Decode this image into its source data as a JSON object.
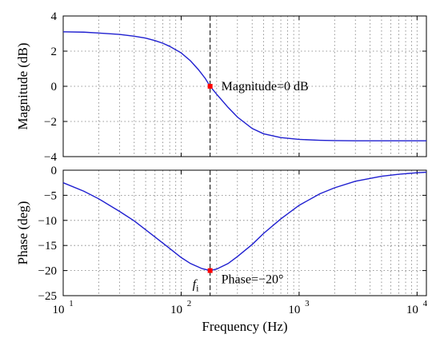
{
  "chart_data": [
    {
      "type": "line",
      "x_scale": "log",
      "xlim": [
        10,
        12000
      ],
      "ylim": [
        -4,
        4
      ],
      "ylabel": "Magnitude (dB)",
      "x_ticks_labeled": false,
      "y_ticks": [
        4,
        2,
        0,
        -2,
        -4
      ],
      "y_tick_labels": [
        "4",
        "2",
        "0",
        "−2",
        "−4"
      ],
      "grid": true,
      "color": "#1f1fd0",
      "series": [
        {
          "x": [
            10,
            15,
            20,
            30,
            40,
            50,
            60,
            70,
            80,
            100,
            120,
            140,
            160,
            176,
            200,
            250,
            300,
            400,
            500,
            700,
            1000,
            1500,
            2000,
            3000,
            5000,
            7000,
            12000
          ],
          "y": [
            3.1,
            3.08,
            3.03,
            2.95,
            2.85,
            2.74,
            2.6,
            2.45,
            2.27,
            1.9,
            1.45,
            0.95,
            0.45,
            0.0,
            -0.45,
            -1.2,
            -1.75,
            -2.4,
            -2.7,
            -2.92,
            -3.02,
            -3.07,
            -3.09,
            -3.1,
            -3.1,
            -3.1,
            -3.1
          ]
        }
      ],
      "marker": {
        "x": 176,
        "y": 0
      },
      "annotation": "Magnitude=0 dB"
    },
    {
      "type": "line",
      "x_scale": "log",
      "xlim": [
        10,
        12000
      ],
      "ylim": [
        -25,
        0
      ],
      "xlabel": "Frequency  (Hz)",
      "ylabel": "Phase (deg)",
      "y_ticks": [
        0,
        -5,
        -10,
        -15,
        -20,
        -25
      ],
      "y_tick_labels": [
        "0",
        "−5",
        "−10",
        "−15",
        "−20",
        "−25"
      ],
      "grid": true,
      "color": "#1f1fd0",
      "series": [
        {
          "x": [
            10,
            15,
            20,
            30,
            40,
            60,
            80,
            100,
            120,
            150,
            176,
            200,
            250,
            300,
            400,
            500,
            700,
            1000,
            1500,
            2000,
            3000,
            5000,
            7000,
            10000,
            12000
          ],
          "y": [
            -2.5,
            -4.2,
            -5.7,
            -8.2,
            -10.1,
            -13.3,
            -15.6,
            -17.4,
            -18.6,
            -19.6,
            -20,
            -19.7,
            -18.6,
            -17.2,
            -14.8,
            -12.6,
            -9.7,
            -7.0,
            -4.7,
            -3.5,
            -2.2,
            -1.2,
            -0.8,
            -0.5,
            -0.4
          ]
        }
      ],
      "marker": {
        "x": 176,
        "y": -20
      },
      "annotation": "Phase=−20°",
      "marker_label": {
        "base": "f",
        "sub": "i"
      }
    }
  ],
  "x_ticks": [
    10,
    100,
    1000,
    10000
  ],
  "x_tick_labels": [
    {
      "base": "10",
      "exp": "1"
    },
    {
      "base": "10",
      "exp": "2"
    },
    {
      "base": "10",
      "exp": "3"
    },
    {
      "base": "10",
      "exp": "4"
    }
  ]
}
